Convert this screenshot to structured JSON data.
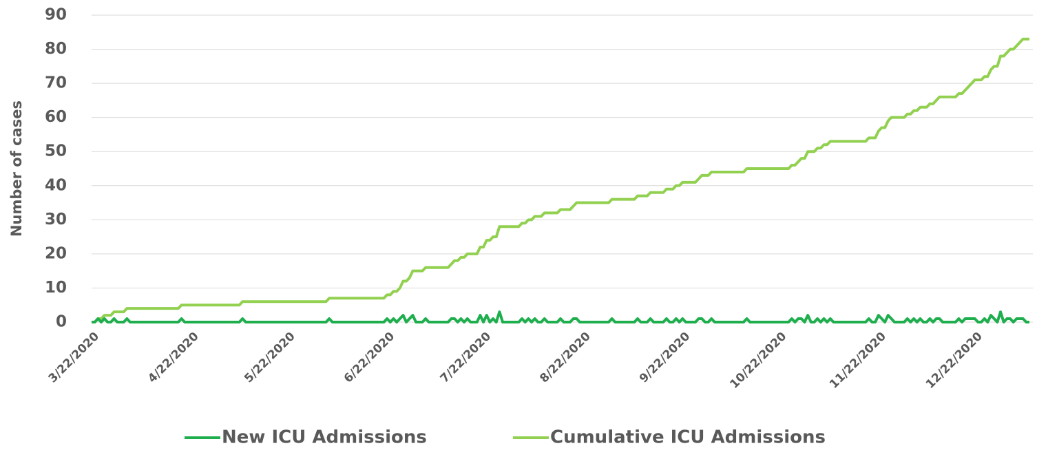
{
  "chart_data": {
    "type": "line",
    "y_label": "Number of cases",
    "categories": [
      "3/22/2020",
      null,
      null,
      null,
      null,
      null,
      null,
      null,
      null,
      null,
      null,
      null,
      null,
      null,
      null,
      null,
      null,
      null,
      null,
      null,
      null,
      null,
      null,
      null,
      null,
      null,
      null,
      null,
      null,
      null,
      null,
      "4/22/2020",
      null,
      null,
      null,
      null,
      null,
      null,
      null,
      null,
      null,
      null,
      null,
      null,
      null,
      null,
      null,
      null,
      null,
      null,
      null,
      null,
      null,
      null,
      null,
      null,
      null,
      null,
      null,
      null,
      null,
      "5/22/2020",
      null,
      null,
      null,
      null,
      null,
      null,
      null,
      null,
      null,
      null,
      null,
      null,
      null,
      null,
      null,
      null,
      null,
      null,
      null,
      null,
      null,
      null,
      null,
      null,
      null,
      null,
      null,
      null,
      null,
      null,
      "6/22/2020",
      null,
      null,
      null,
      null,
      null,
      null,
      null,
      null,
      null,
      null,
      null,
      null,
      null,
      null,
      null,
      null,
      null,
      null,
      null,
      null,
      null,
      null,
      null,
      null,
      null,
      null,
      null,
      null,
      null,
      "7/22/2020",
      null,
      null,
      null,
      null,
      null,
      null,
      null,
      null,
      null,
      null,
      null,
      null,
      null,
      null,
      null,
      null,
      null,
      null,
      null,
      null,
      null,
      null,
      null,
      null,
      null,
      null,
      null,
      null,
      null,
      null,
      "8/22/2020",
      null,
      null,
      null,
      null,
      null,
      null,
      null,
      null,
      null,
      null,
      null,
      null,
      null,
      null,
      null,
      null,
      null,
      null,
      null,
      null,
      null,
      null,
      null,
      null,
      null,
      null,
      null,
      null,
      null,
      null,
      "9/22/2020",
      null,
      null,
      null,
      null,
      null,
      null,
      null,
      null,
      null,
      null,
      null,
      null,
      null,
      null,
      null,
      null,
      null,
      null,
      null,
      null,
      null,
      null,
      null,
      null,
      null,
      null,
      null,
      null,
      null,
      "10/22/2020",
      null,
      null,
      null,
      null,
      null,
      null,
      null,
      null,
      null,
      null,
      null,
      null,
      null,
      null,
      null,
      null,
      null,
      null,
      null,
      null,
      null,
      null,
      null,
      null,
      null,
      null,
      null,
      null,
      null,
      null,
      "11/22/2020",
      null,
      null,
      null,
      null,
      null,
      null,
      null,
      null,
      null,
      null,
      null,
      null,
      null,
      null,
      null,
      null,
      null,
      null,
      null,
      null,
      null,
      null,
      null,
      null,
      null,
      null,
      null,
      null,
      null,
      "12/22/2020",
      null,
      null,
      null,
      null,
      null,
      null,
      null,
      null,
      null,
      null,
      null,
      null,
      null,
      null,
      null,
      null,
      null
    ],
    "series": [
      {
        "name": "New ICU Admissions",
        "color": "#1fae4e",
        "values": [
          0,
          0,
          1,
          0,
          1,
          0,
          0,
          1,
          0,
          0,
          0,
          1,
          0,
          0,
          0,
          0,
          0,
          0,
          0,
          0,
          0,
          0,
          0,
          0,
          0,
          0,
          0,
          0,
          1,
          0,
          0,
          0,
          0,
          0,
          0,
          0,
          0,
          0,
          0,
          0,
          0,
          0,
          0,
          0,
          0,
          0,
          0,
          1,
          0,
          0,
          0,
          0,
          0,
          0,
          0,
          0,
          0,
          0,
          0,
          0,
          0,
          0,
          0,
          0,
          0,
          0,
          0,
          0,
          0,
          0,
          0,
          0,
          0,
          0,
          1,
          0,
          0,
          0,
          0,
          0,
          0,
          0,
          0,
          0,
          0,
          0,
          0,
          0,
          0,
          0,
          0,
          0,
          1,
          0,
          1,
          0,
          1,
          2,
          0,
          1,
          2,
          0,
          0,
          0,
          1,
          0,
          0,
          0,
          0,
          0,
          0,
          0,
          1,
          1,
          0,
          1,
          0,
          1,
          0,
          0,
          0,
          2,
          0,
          2,
          0,
          1,
          0,
          3,
          0,
          0,
          0,
          0,
          0,
          0,
          1,
          0,
          1,
          0,
          1,
          0,
          0,
          1,
          0,
          0,
          0,
          0,
          1,
          0,
          0,
          0,
          1,
          1,
          0,
          0,
          0,
          0,
          0,
          0,
          0,
          0,
          0,
          0,
          1,
          0,
          0,
          0,
          0,
          0,
          0,
          0,
          1,
          0,
          0,
          0,
          1,
          0,
          0,
          0,
          0,
          1,
          0,
          0,
          1,
          0,
          1,
          0,
          0,
          0,
          0,
          1,
          1,
          0,
          0,
          1,
          0,
          0,
          0,
          0,
          0,
          0,
          0,
          0,
          0,
          0,
          1,
          0,
          0,
          0,
          0,
          0,
          0,
          0,
          0,
          0,
          0,
          0,
          0,
          0,
          1,
          0,
          1,
          1,
          0,
          2,
          0,
          0,
          1,
          0,
          1,
          0,
          1,
          0,
          0,
          0,
          0,
          0,
          0,
          0,
          0,
          0,
          0,
          0,
          1,
          0,
          0,
          2,
          1,
          0,
          2,
          1,
          0,
          0,
          0,
          0,
          1,
          0,
          1,
          0,
          1,
          0,
          0,
          1,
          0,
          1,
          1,
          0,
          0,
          0,
          0,
          0,
          1,
          0,
          1,
          1,
          1,
          1,
          0,
          0,
          1,
          0,
          2,
          1,
          0,
          3,
          0,
          1,
          1,
          0,
          1,
          1,
          1,
          0,
          0
        ]
      },
      {
        "name": "Cumulative ICU Admissions",
        "color": "#92d050",
        "values": [
          0,
          0,
          1,
          1,
          2,
          2,
          2,
          3,
          3,
          3,
          3,
          4,
          4,
          4,
          4,
          4,
          4,
          4,
          4,
          4,
          4,
          4,
          4,
          4,
          4,
          4,
          4,
          4,
          5,
          5,
          5,
          5,
          5,
          5,
          5,
          5,
          5,
          5,
          5,
          5,
          5,
          5,
          5,
          5,
          5,
          5,
          5,
          6,
          6,
          6,
          6,
          6,
          6,
          6,
          6,
          6,
          6,
          6,
          6,
          6,
          6,
          6,
          6,
          6,
          6,
          6,
          6,
          6,
          6,
          6,
          6,
          6,
          6,
          6,
          7,
          7,
          7,
          7,
          7,
          7,
          7,
          7,
          7,
          7,
          7,
          7,
          7,
          7,
          7,
          7,
          7,
          7,
          8,
          8,
          9,
          9,
          10,
          12,
          12,
          13,
          15,
          15,
          15,
          15,
          16,
          16,
          16,
          16,
          16,
          16,
          16,
          16,
          17,
          18,
          18,
          19,
          19,
          20,
          20,
          20,
          20,
          22,
          22,
          24,
          24,
          25,
          25,
          28,
          28,
          28,
          28,
          28,
          28,
          28,
          29,
          29,
          30,
          30,
          31,
          31,
          31,
          32,
          32,
          32,
          32,
          32,
          33,
          33,
          33,
          33,
          34,
          35,
          35,
          35,
          35,
          35,
          35,
          35,
          35,
          35,
          35,
          35,
          36,
          36,
          36,
          36,
          36,
          36,
          36,
          36,
          37,
          37,
          37,
          37,
          38,
          38,
          38,
          38,
          38,
          39,
          39,
          39,
          40,
          40,
          41,
          41,
          41,
          41,
          41,
          42,
          43,
          43,
          43,
          44,
          44,
          44,
          44,
          44,
          44,
          44,
          44,
          44,
          44,
          44,
          45,
          45,
          45,
          45,
          45,
          45,
          45,
          45,
          45,
          45,
          45,
          45,
          45,
          45,
          46,
          46,
          47,
          48,
          48,
          50,
          50,
          50,
          51,
          51,
          52,
          52,
          53,
          53,
          53,
          53,
          53,
          53,
          53,
          53,
          53,
          53,
          53,
          53,
          54,
          54,
          54,
          56,
          57,
          57,
          59,
          60,
          60,
          60,
          60,
          60,
          61,
          61,
          62,
          62,
          63,
          63,
          63,
          64,
          64,
          65,
          66,
          66,
          66,
          66,
          66,
          66,
          67,
          67,
          68,
          69,
          70,
          71,
          71,
          71,
          72,
          72,
          74,
          75,
          75,
          78,
          78,
          79,
          80,
          80,
          81,
          82,
          83,
          83,
          83
        ]
      }
    ],
    "ylim": [
      0,
      90
    ],
    "yticks": [
      0,
      10,
      20,
      30,
      40,
      50,
      60,
      70,
      80,
      90
    ],
    "grid": true,
    "legend": "bottom"
  }
}
